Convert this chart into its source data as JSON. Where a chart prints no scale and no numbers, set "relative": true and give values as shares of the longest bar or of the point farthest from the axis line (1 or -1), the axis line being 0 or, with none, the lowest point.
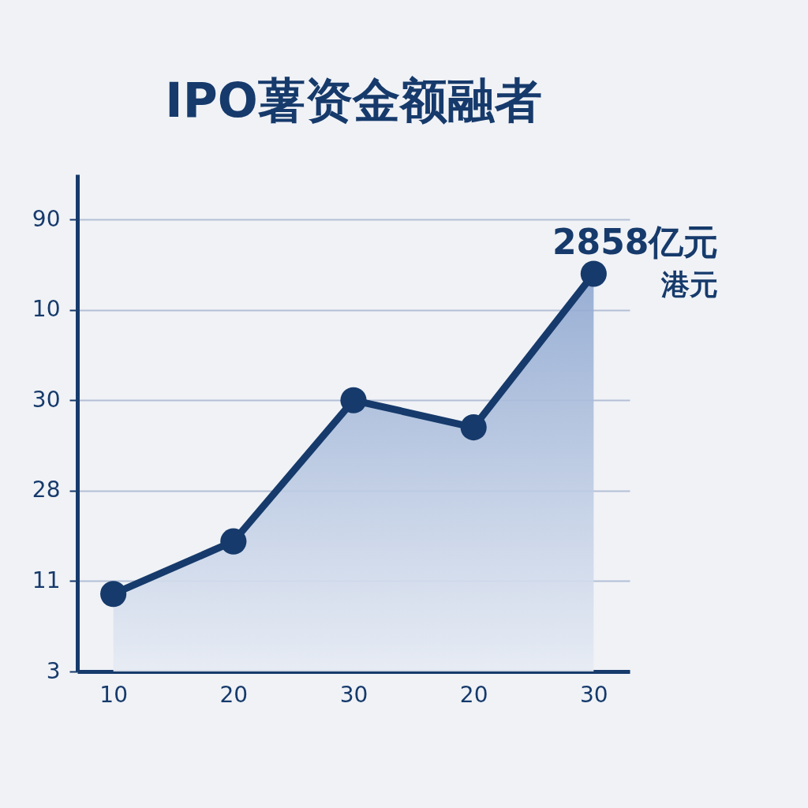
{
  "chart_data": {
    "type": "area",
    "title": "IPO薯资金额融者",
    "categories": [
      "10",
      "20",
      "30",
      "20",
      "30"
    ],
    "series": [
      {
        "color": "#163a6b",
        "values": [
          0.195,
          0.327,
          0.682,
          0.614,
          1
        ]
      }
    ],
    "relative": true,
    "grid": "y",
    "marker": "circle",
    "line_style": "solid",
    "annotations": [
      "3",
      "11",
      "28",
      "30",
      "10",
      "90",
      "2858亿元",
      "港元"
    ]
  }
}
